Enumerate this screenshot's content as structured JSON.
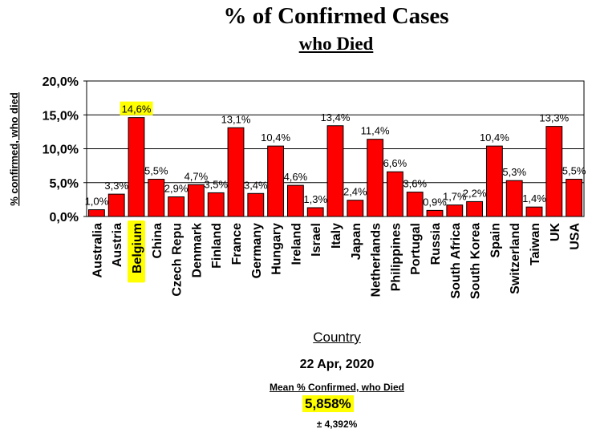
{
  "title": "% of Confirmed Cases",
  "subtitle": "who Died",
  "footer": {
    "date": "22 Apr, 2020",
    "mean_label": "Mean % Confirmed, who Died",
    "mean_value": "5,858%",
    "std_dev": "± 4,392%"
  },
  "colors": {
    "bar": "#ff0000",
    "highlight": "#ffff00"
  },
  "chart_data": {
    "type": "bar",
    "xlabel": "Country",
    "ylabel": "% confirmed, who died",
    "ylim": [
      0,
      20
    ],
    "yticks": [
      "0,0%",
      "5,0%",
      "10,0%",
      "15,0%",
      "20,0%"
    ],
    "grid": true,
    "categories": [
      "Australia",
      "Austria",
      "Belgium",
      "China",
      "Czech Repu",
      "Denmark",
      "Finland",
      "France",
      "Germany",
      "Hungary",
      "Ireland",
      "Israel",
      "Italy",
      "Japan",
      "Netherlands",
      "Philippines",
      "Portugal",
      "Russia",
      "South Africa",
      "South Korea",
      "Spain",
      "Switzerland",
      "Taiwan",
      "UK",
      "USA"
    ],
    "values": [
      1.0,
      3.3,
      14.6,
      5.5,
      2.9,
      4.7,
      3.5,
      13.1,
      3.4,
      10.4,
      4.6,
      1.3,
      13.4,
      2.4,
      11.4,
      6.6,
      3.6,
      0.9,
      1.7,
      2.2,
      10.4,
      5.3,
      1.4,
      13.3,
      5.5
    ],
    "labels": [
      "1,0%",
      "3,3%",
      "14,6%",
      "5,5%",
      "2,9%",
      "4,7%",
      "3,5%",
      "13,1%",
      "3,4%",
      "10,4%",
      "4,6%",
      "1,3%",
      "13,4%",
      "2,4%",
      "11,4%",
      "6,6%",
      "3,6%",
      "0,9%",
      "1,7%",
      "2,2%",
      "10,4%",
      "5,3%",
      "1,4%",
      "13,3%",
      "5,5%"
    ],
    "highlighted": "Belgium"
  }
}
